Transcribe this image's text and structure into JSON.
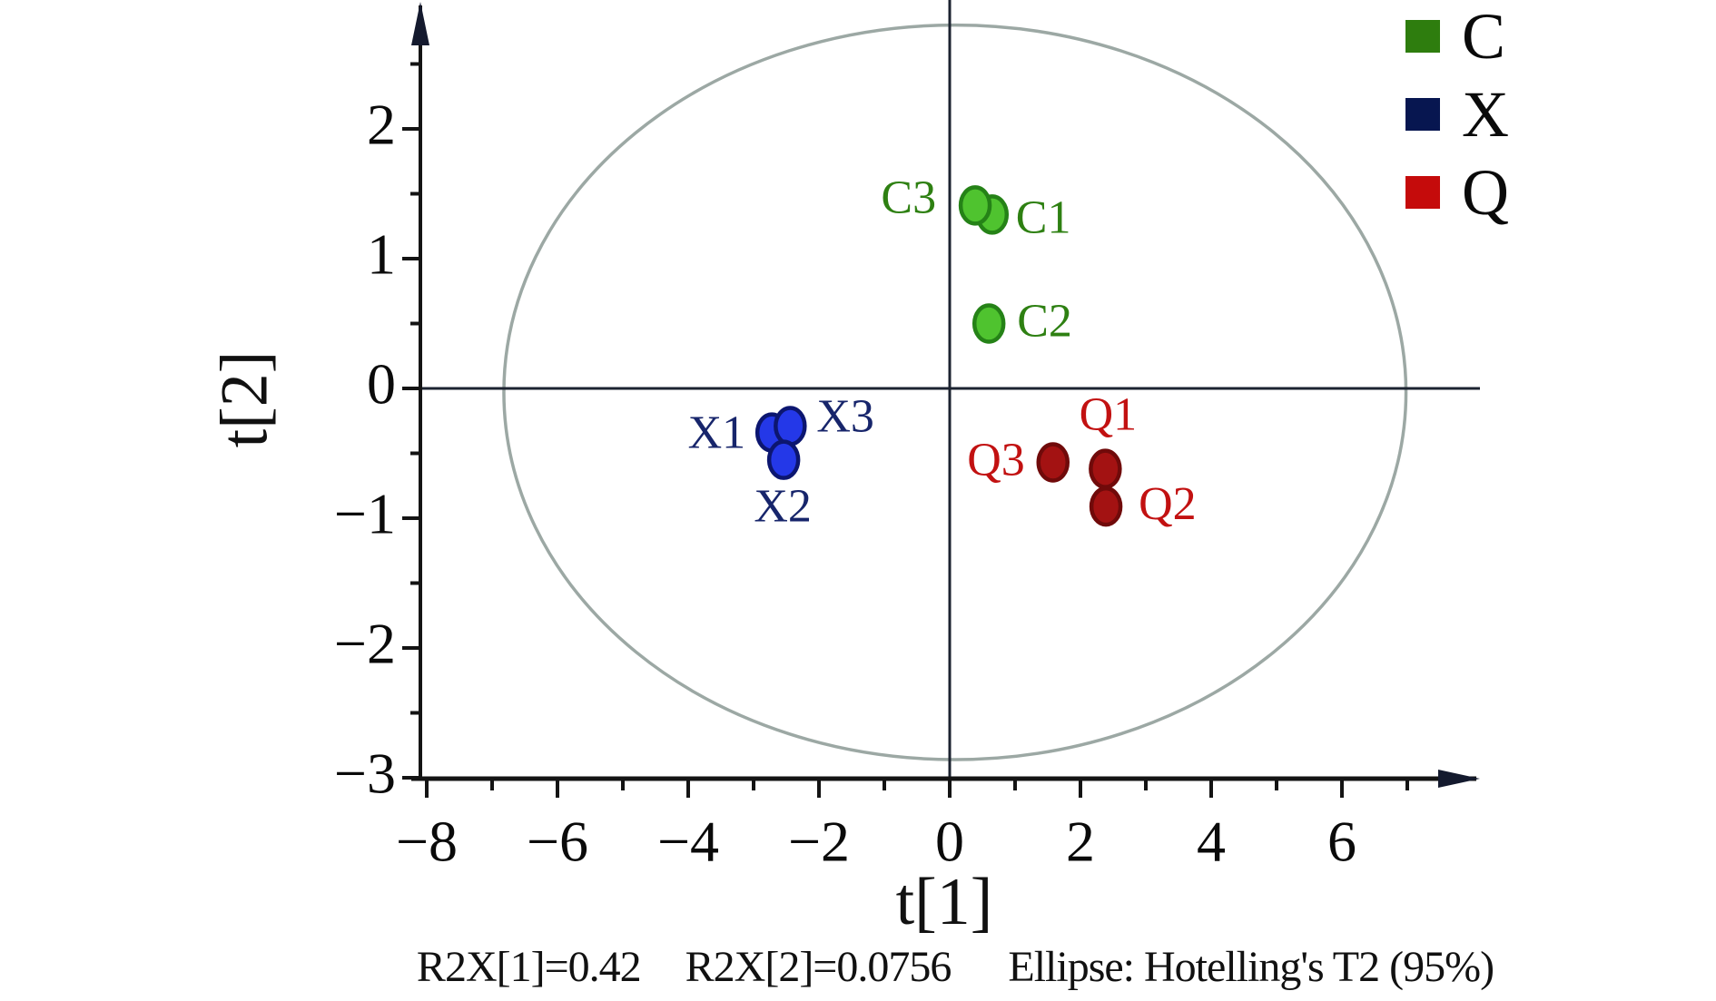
{
  "legend": {
    "items": [
      {
        "label": "C",
        "color": "#2e7d0e"
      },
      {
        "label": "X",
        "color": "#071650"
      },
      {
        "label": "Q",
        "color": "#c50b0b"
      }
    ]
  },
  "footer": {
    "r2x1": "R2X[1]=0.42",
    "r2x2": "R2X[2]=0.0756",
    "ellipse_note": "Ellipse: Hotelling's T2 (95%)"
  },
  "chart_data": {
    "type": "scatter",
    "title": "",
    "xlabel": "t[1]",
    "ylabel": "t[2]",
    "xlim": [
      -8.2,
      8.1
    ],
    "ylim": [
      -3.0,
      2.95
    ],
    "grid": false,
    "legend_position": "top-right",
    "x_ticks_major": [
      -8,
      -6,
      -4,
      -2,
      0,
      2,
      4,
      6
    ],
    "x_ticks_minor": [
      -7,
      -5,
      -3,
      -1,
      1,
      3,
      5,
      7
    ],
    "y_ticks_major": [
      2,
      1,
      0,
      -1,
      -2,
      -3
    ],
    "y_ticks_minor": [
      2.5,
      1.5,
      0.5,
      -0.5,
      -1.5,
      -2.5
    ],
    "ellipse": {
      "name": "Hotelling's T2 (95%)",
      "cx": 0.08,
      "cy": -0.03,
      "rx": 6.9,
      "ry": 2.83,
      "color": "#9ca8a4"
    },
    "series": [
      {
        "name": "C",
        "fill": "#4fc32f",
        "edge": "#258217",
        "label_color": "#2e8012",
        "points": [
          {
            "id": "C1",
            "t1": 0.65,
            "t2": 1.34,
            "anchor": "start",
            "dx": 26,
            "dy": 8
          },
          {
            "id": "C3",
            "t1": 0.39,
            "t2": 1.41,
            "anchor": "end",
            "dx": -43,
            "dy": -4
          },
          {
            "id": "C2",
            "t1": 0.6,
            "t2": 0.5,
            "anchor": "start",
            "dx": 31,
            "dy": 2
          }
        ]
      },
      {
        "name": "X",
        "fill": "#2438e8",
        "edge": "#0c1670",
        "label_color": "#17256b",
        "points": [
          {
            "id": "X1",
            "t1": -2.72,
            "t2": -0.34,
            "anchor": "end",
            "dx": -29,
            "dy": 5
          },
          {
            "id": "X3",
            "t1": -2.44,
            "t2": -0.29,
            "anchor": "start",
            "dx": 29,
            "dy": -6
          },
          {
            "id": "X2",
            "t1": -2.54,
            "t2": -0.55,
            "anchor": "middle",
            "dx": -1,
            "dy": 56
          }
        ]
      },
      {
        "name": "Q",
        "fill": "#a31212",
        "edge": "#700a0a",
        "label_color": "#c21111",
        "points": [
          {
            "id": "Q3",
            "t1": 1.58,
            "t2": -0.57,
            "anchor": "end",
            "dx": -31,
            "dy": 2
          },
          {
            "id": "Q1",
            "t1": 2.38,
            "t2": -0.62,
            "anchor": "middle",
            "dx": 3,
            "dy": -55
          },
          {
            "id": "Q2",
            "t1": 2.39,
            "t2": -0.91,
            "anchor": "start",
            "dx": 36,
            "dy": 2
          }
        ]
      }
    ]
  }
}
